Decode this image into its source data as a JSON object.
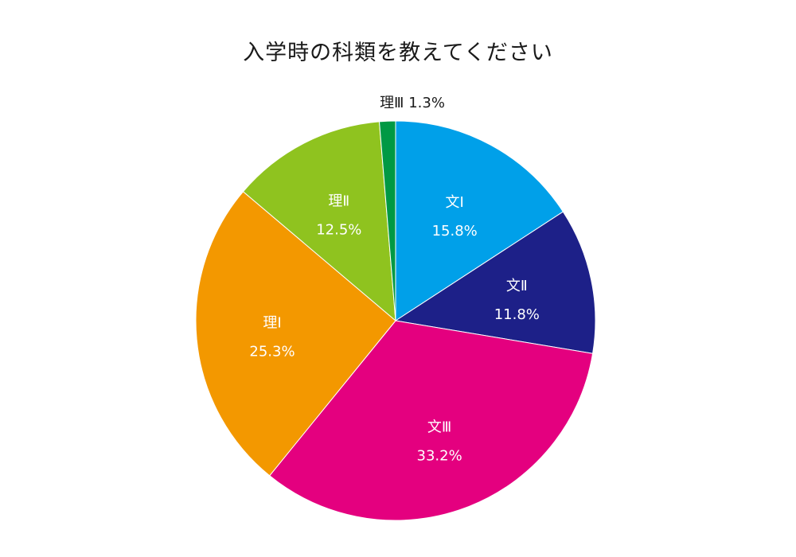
{
  "chart_data": {
    "type": "pie",
    "title": "入学時の科類を教えてください",
    "start_angle_deg": 0,
    "direction": "clockwise",
    "slices": [
      {
        "label": "文Ⅰ",
        "value": 15.8,
        "value_text": "15.8%",
        "color": "#00a0e9",
        "label_inside": true,
        "text_color": "#ffffff"
      },
      {
        "label": "文Ⅱ",
        "value": 11.8,
        "value_text": "11.8%",
        "color": "#1d2088",
        "label_inside": true,
        "text_color": "#ffffff"
      },
      {
        "label": "文Ⅲ",
        "value": 33.2,
        "value_text": "33.2%",
        "color": "#e4007f",
        "label_inside": true,
        "text_color": "#ffffff"
      },
      {
        "label": "理Ⅰ",
        "value": 25.3,
        "value_text": "25.3%",
        "color": "#f39800",
        "label_inside": true,
        "text_color": "#ffffff"
      },
      {
        "label": "理Ⅱ",
        "value": 12.5,
        "value_text": "12.5%",
        "color": "#8fc31f",
        "label_inside": true,
        "text_color": "#ffffff"
      },
      {
        "label": "理Ⅲ",
        "value": 1.3,
        "value_text": "1.3%",
        "color": "#009944",
        "label_inside": false,
        "text_color": "#1a1a1a"
      }
    ]
  }
}
